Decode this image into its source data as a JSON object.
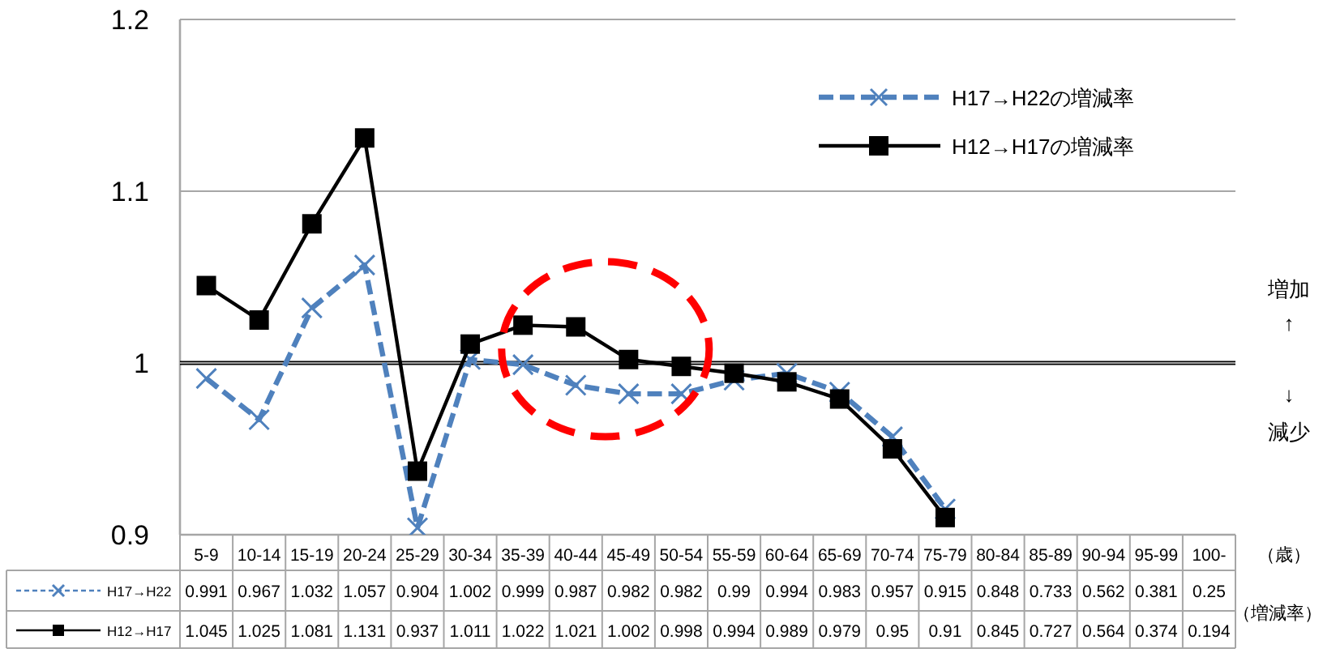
{
  "chart_data": {
    "type": "line",
    "categories": [
      "5-9",
      "10-14",
      "15-19",
      "20-24",
      "25-29",
      "30-34",
      "35-39",
      "40-44",
      "45-49",
      "50-54",
      "55-59",
      "60-64",
      "65-69",
      "70-74",
      "75-79",
      "80-84",
      "85-89",
      "90-94",
      "95-99",
      "100-"
    ],
    "series": [
      {
        "name": "H17→H22の増減率",
        "color": "#4f81bd",
        "marker": "cross",
        "line_style": "dashed",
        "values": [
          0.991,
          0.967,
          1.032,
          1.057,
          0.904,
          1.002,
          0.999,
          0.987,
          0.982,
          0.982,
          0.99,
          0.994,
          0.983,
          0.957,
          0.915,
          null,
          null,
          null,
          null,
          null
        ],
        "value_labels": [
          "0.991",
          "0.967",
          "1.032",
          "1.057",
          "0.904",
          "1.002",
          "0.999",
          "0.987",
          "0.982",
          "0.982",
          "0.99",
          "0.994",
          "0.983",
          "0.957",
          "0.915",
          "0.848",
          "0.733",
          "0.562",
          "0.381",
          "0.25"
        ]
      },
      {
        "name": "H12→H17の増減率",
        "color": "#000000",
        "marker": "square",
        "line_style": "solid",
        "values": [
          1.045,
          1.025,
          1.081,
          1.131,
          0.937,
          1.011,
          1.022,
          1.021,
          1.002,
          0.998,
          0.994,
          0.989,
          0.979,
          0.95,
          0.91,
          null,
          null,
          null,
          null,
          null
        ],
        "value_labels": [
          "1.045",
          "1.025",
          "1.081",
          "1.131",
          "0.937",
          "1.011",
          "1.022",
          "1.021",
          "1.002",
          "0.998",
          "0.994",
          "0.989",
          "0.979",
          "0.95",
          "0.91",
          "0.845",
          "0.727",
          "0.564",
          "0.374",
          "0.194"
        ]
      }
    ],
    "ylim": [
      0.9,
      1.2
    ],
    "yticks": [
      0.9,
      1,
      1.1,
      1.2
    ],
    "grid": "y",
    "legend": "top right",
    "ref_lines": [
      {
        "axis": "y",
        "value": 1,
        "color": "#000000"
      }
    ],
    "annotations": [
      "増加",
      "↑",
      "↓",
      "減少",
      "（歳）",
      "（増減率）",
      "H17→H22",
      "H12→H17"
    ]
  }
}
